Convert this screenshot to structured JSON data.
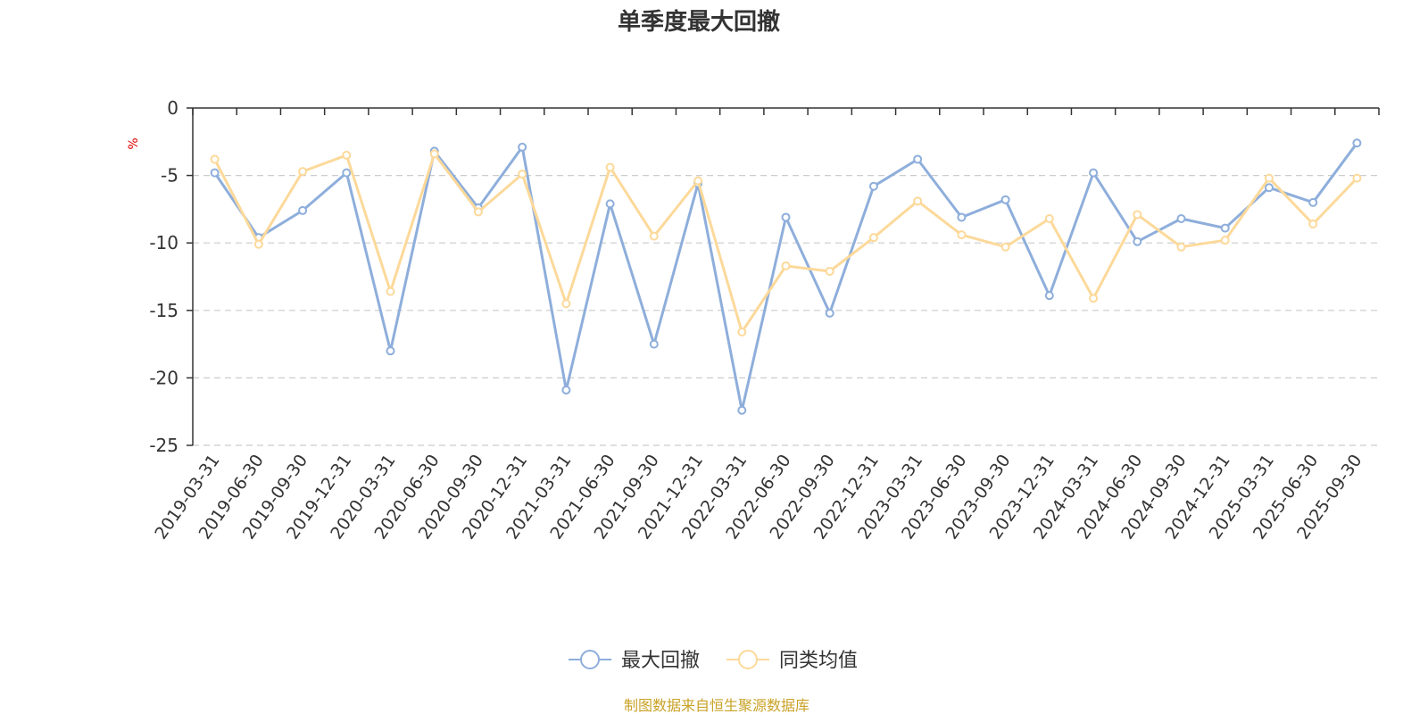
{
  "chart_data": {
    "type": "line",
    "title": "单季度最大回撤",
    "ylabel": "%",
    "xlabel": "",
    "ylim": [
      -25,
      0
    ],
    "yticks": [
      0,
      -5,
      -10,
      -15,
      -20,
      -25
    ],
    "grid": true,
    "legend_position": "bottom",
    "categories": [
      "2019-03-31",
      "2019-06-30",
      "2019-09-30",
      "2019-12-31",
      "2020-03-31",
      "2020-06-30",
      "2020-09-30",
      "2020-12-31",
      "2021-03-31",
      "2021-06-30",
      "2021-09-30",
      "2021-12-31",
      "2022-03-31",
      "2022-06-30",
      "2022-09-30",
      "2022-12-31",
      "2023-03-31",
      "2023-06-30",
      "2023-09-30",
      "2023-12-31",
      "2024-03-31",
      "2024-06-30",
      "2024-09-30",
      "2024-12-31",
      "2025-03-31",
      "2025-06-30",
      "2025-09-30"
    ],
    "series": [
      {
        "name": "最大回撤",
        "color": "#8eaedb",
        "values": [
          -4.8,
          -9.6,
          -7.6,
          -4.8,
          -18.0,
          -3.2,
          -7.4,
          -2.9,
          -20.9,
          -7.1,
          -17.5,
          -5.6,
          -22.4,
          -8.1,
          -15.2,
          -5.8,
          -3.8,
          -8.1,
          -6.8,
          -13.9,
          -4.8,
          -9.9,
          -8.2,
          -8.9,
          -5.9,
          -7.0,
          -2.6
        ]
      },
      {
        "name": "同类均值",
        "color": "#fcd99a",
        "values": [
          -3.8,
          -10.1,
          -4.7,
          -3.5,
          -13.6,
          -3.4,
          -7.7,
          -4.9,
          -14.5,
          -4.4,
          -9.5,
          -5.4,
          -16.6,
          -11.7,
          -12.1,
          -9.6,
          -6.9,
          -9.4,
          -10.3,
          -8.2,
          -14.1,
          -7.9,
          -10.3,
          -9.8,
          -5.2,
          -8.6,
          -5.2
        ]
      }
    ],
    "source": "制图数据来自恒生聚源数据库"
  }
}
